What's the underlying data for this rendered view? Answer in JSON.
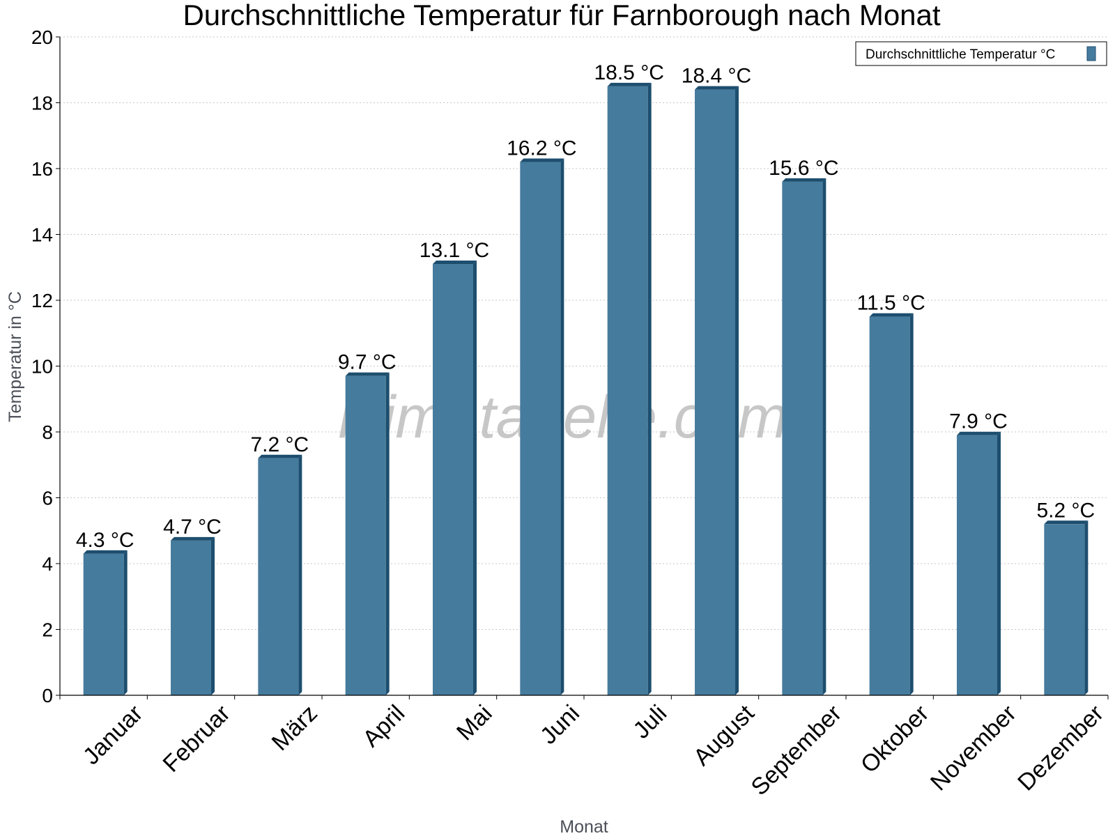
{
  "chart_data": {
    "type": "bar",
    "title": "Durchschnittliche Temperatur für Farnborough nach Monat",
    "xlabel": "Monat",
    "ylabel": "Temperatur in °C",
    "categories": [
      "Januar",
      "Februar",
      "März",
      "April",
      "Mai",
      "Juni",
      "Juli",
      "August",
      "September",
      "Oktober",
      "November",
      "Dezember"
    ],
    "series": [
      {
        "name": "Durchschnittliche Temperatur °C",
        "values": [
          4.3,
          4.7,
          7.2,
          9.7,
          13.1,
          16.2,
          18.5,
          18.4,
          15.6,
          11.5,
          7.9,
          5.2
        ],
        "labels": [
          "4.3 °C",
          "4.7 °C",
          "7.2 °C",
          "9.7 °C",
          "13.1 °C",
          "16.2 °C",
          "18.5 °C",
          "18.4 °C",
          "15.6 °C",
          "11.5 °C",
          "7.9 °C",
          "5.2 °C"
        ],
        "color": "#457b9d",
        "edge_color": "#1d4e6e"
      }
    ],
    "ylim": [
      0,
      20
    ],
    "yticks": [
      0,
      2,
      4,
      6,
      8,
      10,
      12,
      14,
      16,
      18,
      20
    ],
    "grid": true,
    "legend": "top-right",
    "watermark": "klimatabelle.com"
  }
}
